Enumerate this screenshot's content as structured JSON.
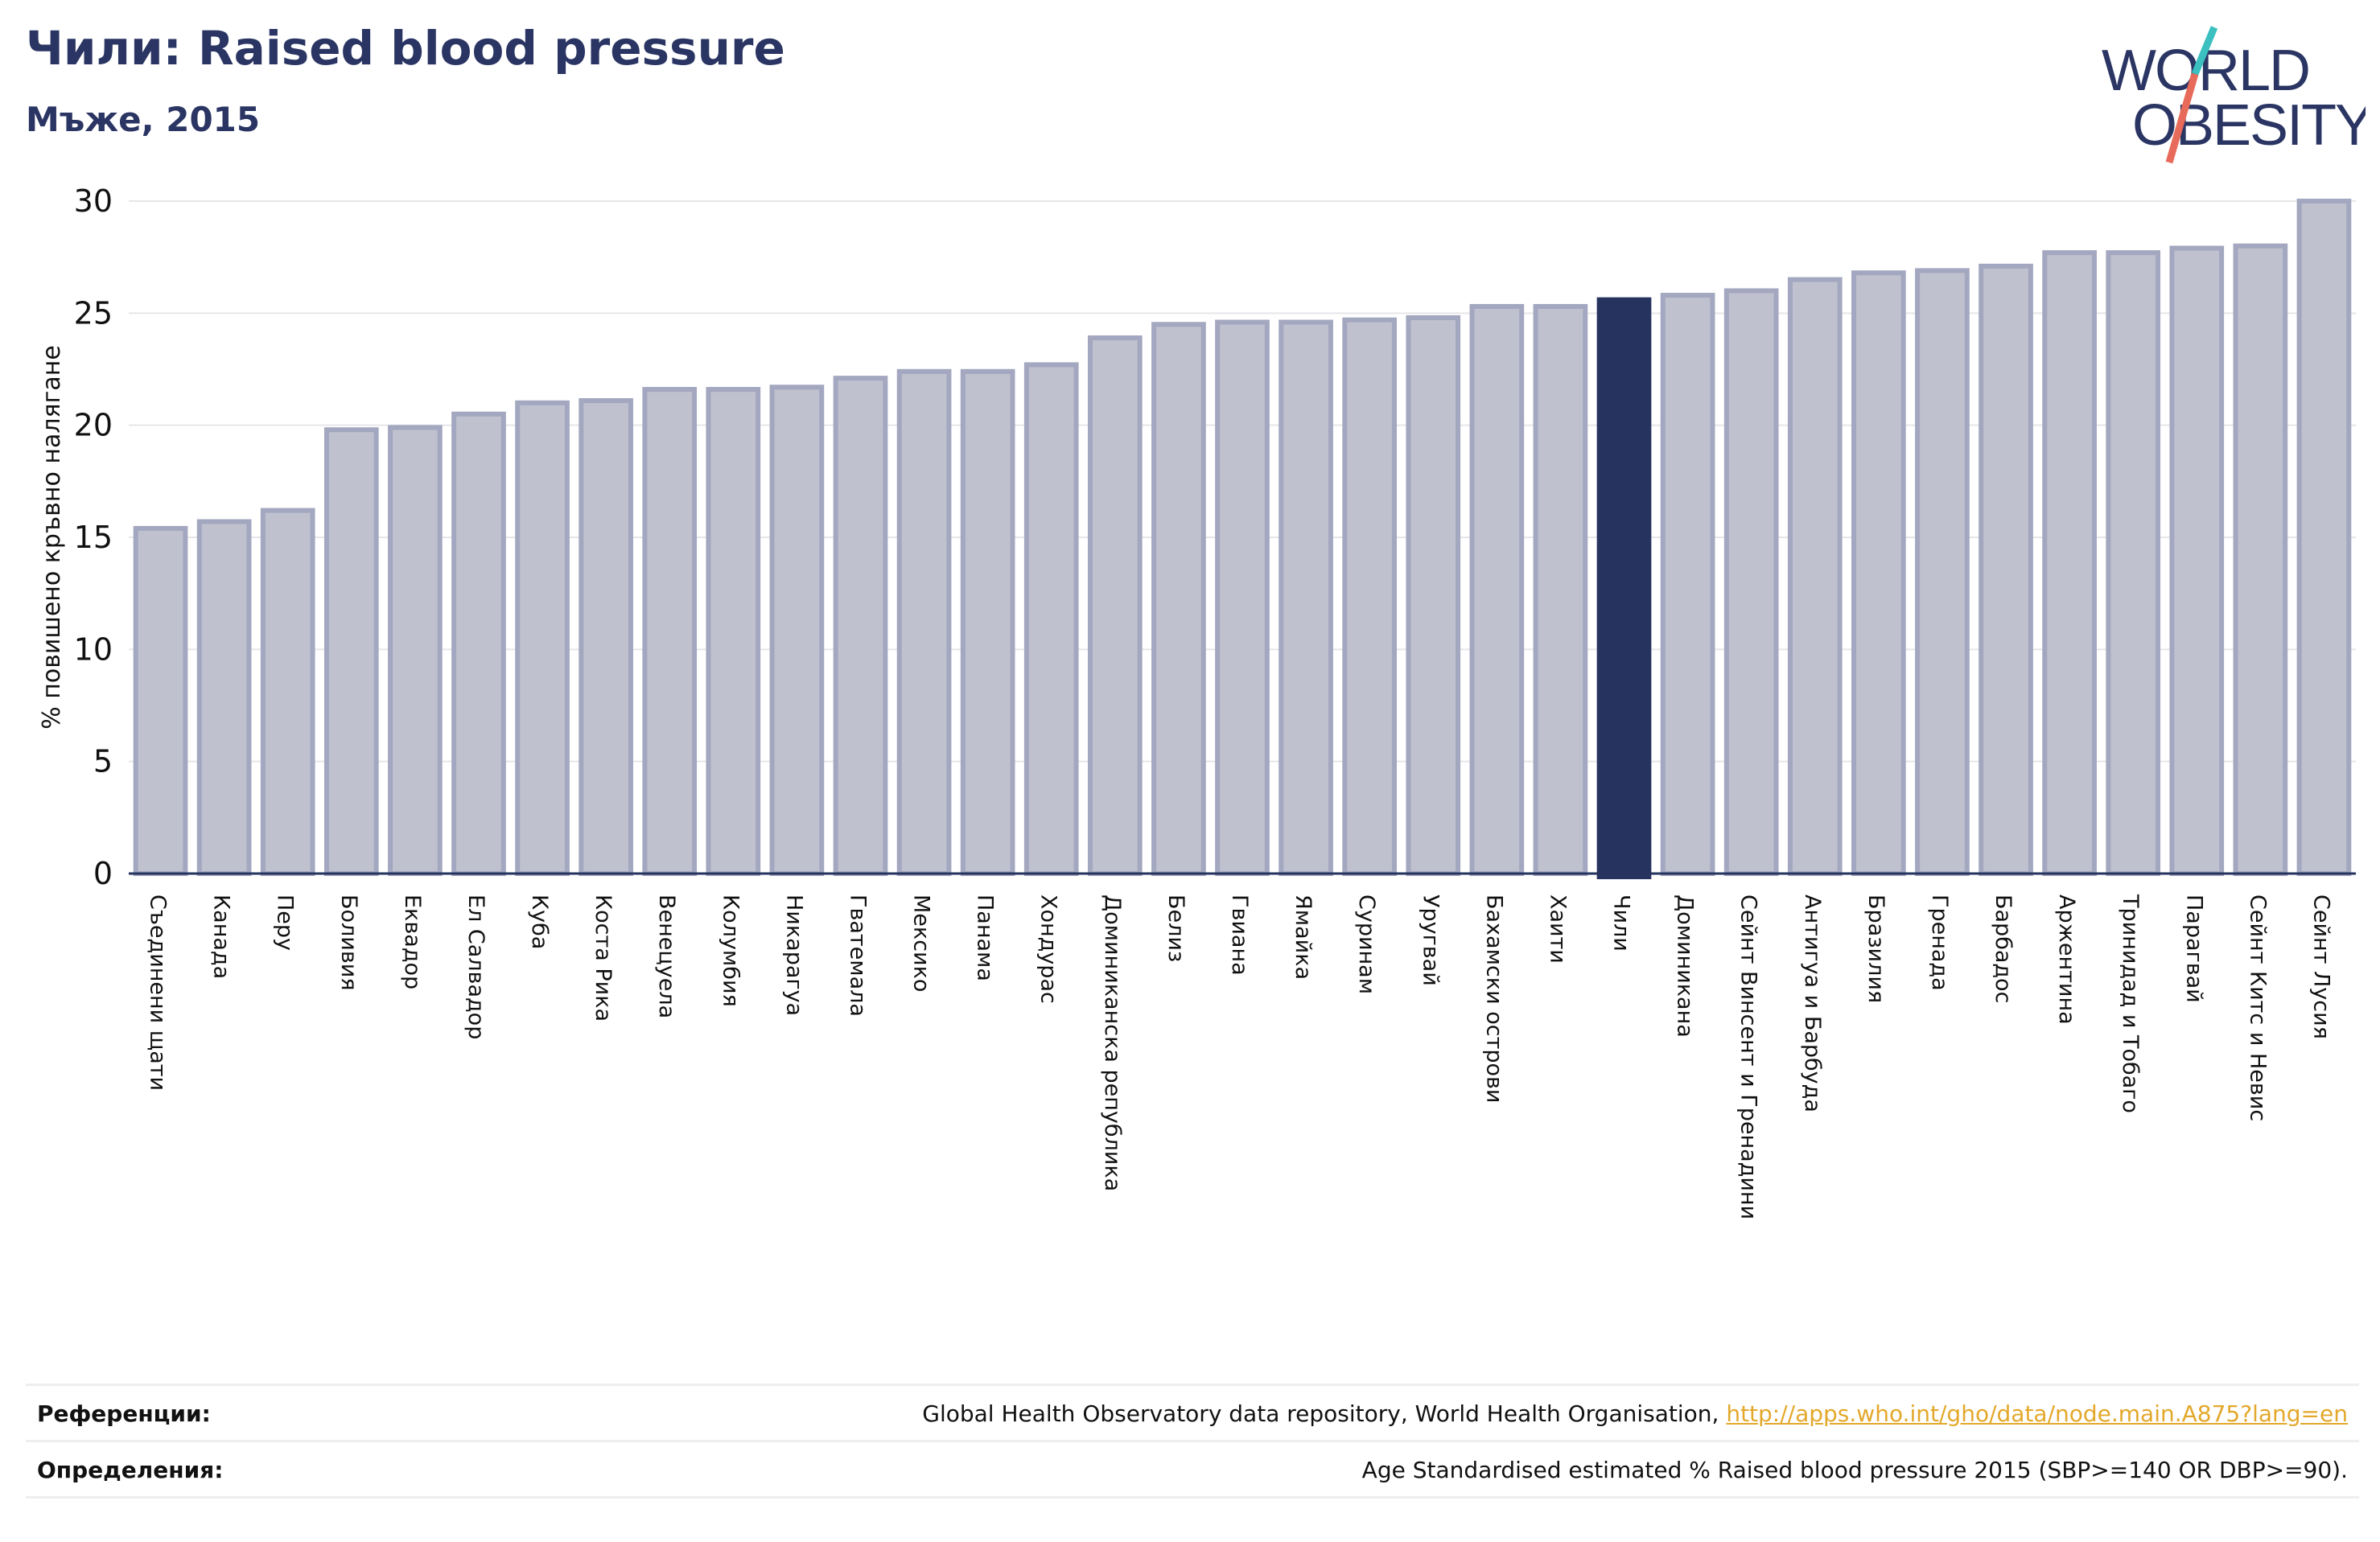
{
  "header": {
    "title": "Чили: Raised blood pressure",
    "subtitle": "Мъже, 2015"
  },
  "logo": {
    "line1": "WORLD",
    "line2": "OBESITY",
    "colors": {
      "text": "#2a3563",
      "slash_top": "#3bbfbf",
      "slash_bottom": "#e86a5a"
    }
  },
  "chart_data": {
    "type": "bar",
    "ylabel": "% повишено кръвно налягане",
    "ylim": [
      0,
      30
    ],
    "yticks": [
      0,
      5,
      10,
      15,
      20,
      25,
      30
    ],
    "grid": true,
    "highlight": "Чили",
    "colors": {
      "bar": "#bfc1cf",
      "bar_edge": "#a3a7bf",
      "highlight": "#27335f",
      "axis": "#26335f",
      "grid": "#e6e6ea"
    },
    "categories": [
      "Съединени щати",
      "Канада",
      "Перу",
      "Боливия",
      "Еквадор",
      "Ел Салвадор",
      "Куба",
      "Коста Рика",
      "Венецуела",
      "Колумбия",
      "Никарагуа",
      "Гватемала",
      "Мексико",
      "Панама",
      "Хондурас",
      "Доминиканска република",
      "Белиз",
      "Гвиана",
      "Ямайка",
      "Суринам",
      "Уругвай",
      "Бахамски острови",
      "Хаити",
      "Чили",
      "Доминикана",
      "Сейнт Винсент и Гренадини",
      "Антигуа и Барбуда",
      "Бразилия",
      "Гренада",
      "Барбадос",
      "Аржентина",
      "Тринидад и Тобаго",
      "Парагвай",
      "Сейнт Китс и Невис",
      "Сейнт Лусия"
    ],
    "values": [
      15.4,
      15.7,
      16.2,
      19.8,
      19.9,
      20.5,
      21.0,
      21.1,
      21.6,
      21.6,
      21.7,
      22.1,
      22.4,
      22.4,
      22.7,
      23.9,
      24.5,
      24.6,
      24.6,
      24.7,
      24.8,
      25.3,
      25.3,
      25.6,
      25.8,
      26.0,
      26.5,
      26.8,
      26.9,
      27.1,
      27.7,
      27.7,
      27.9,
      28.0,
      30.0
    ]
  },
  "footer": {
    "references_label": "Референции:",
    "references_text": "Global Health Observatory data repository, World Health Organisation, ",
    "references_link": "http://apps.who.int/gho/data/node.main.A875?lang=en",
    "definitions_label": "Определения:",
    "definitions_text": "Age Standardised estimated % Raised blood pressure 2015 (SBP>=140 OR DBP>=90)."
  }
}
